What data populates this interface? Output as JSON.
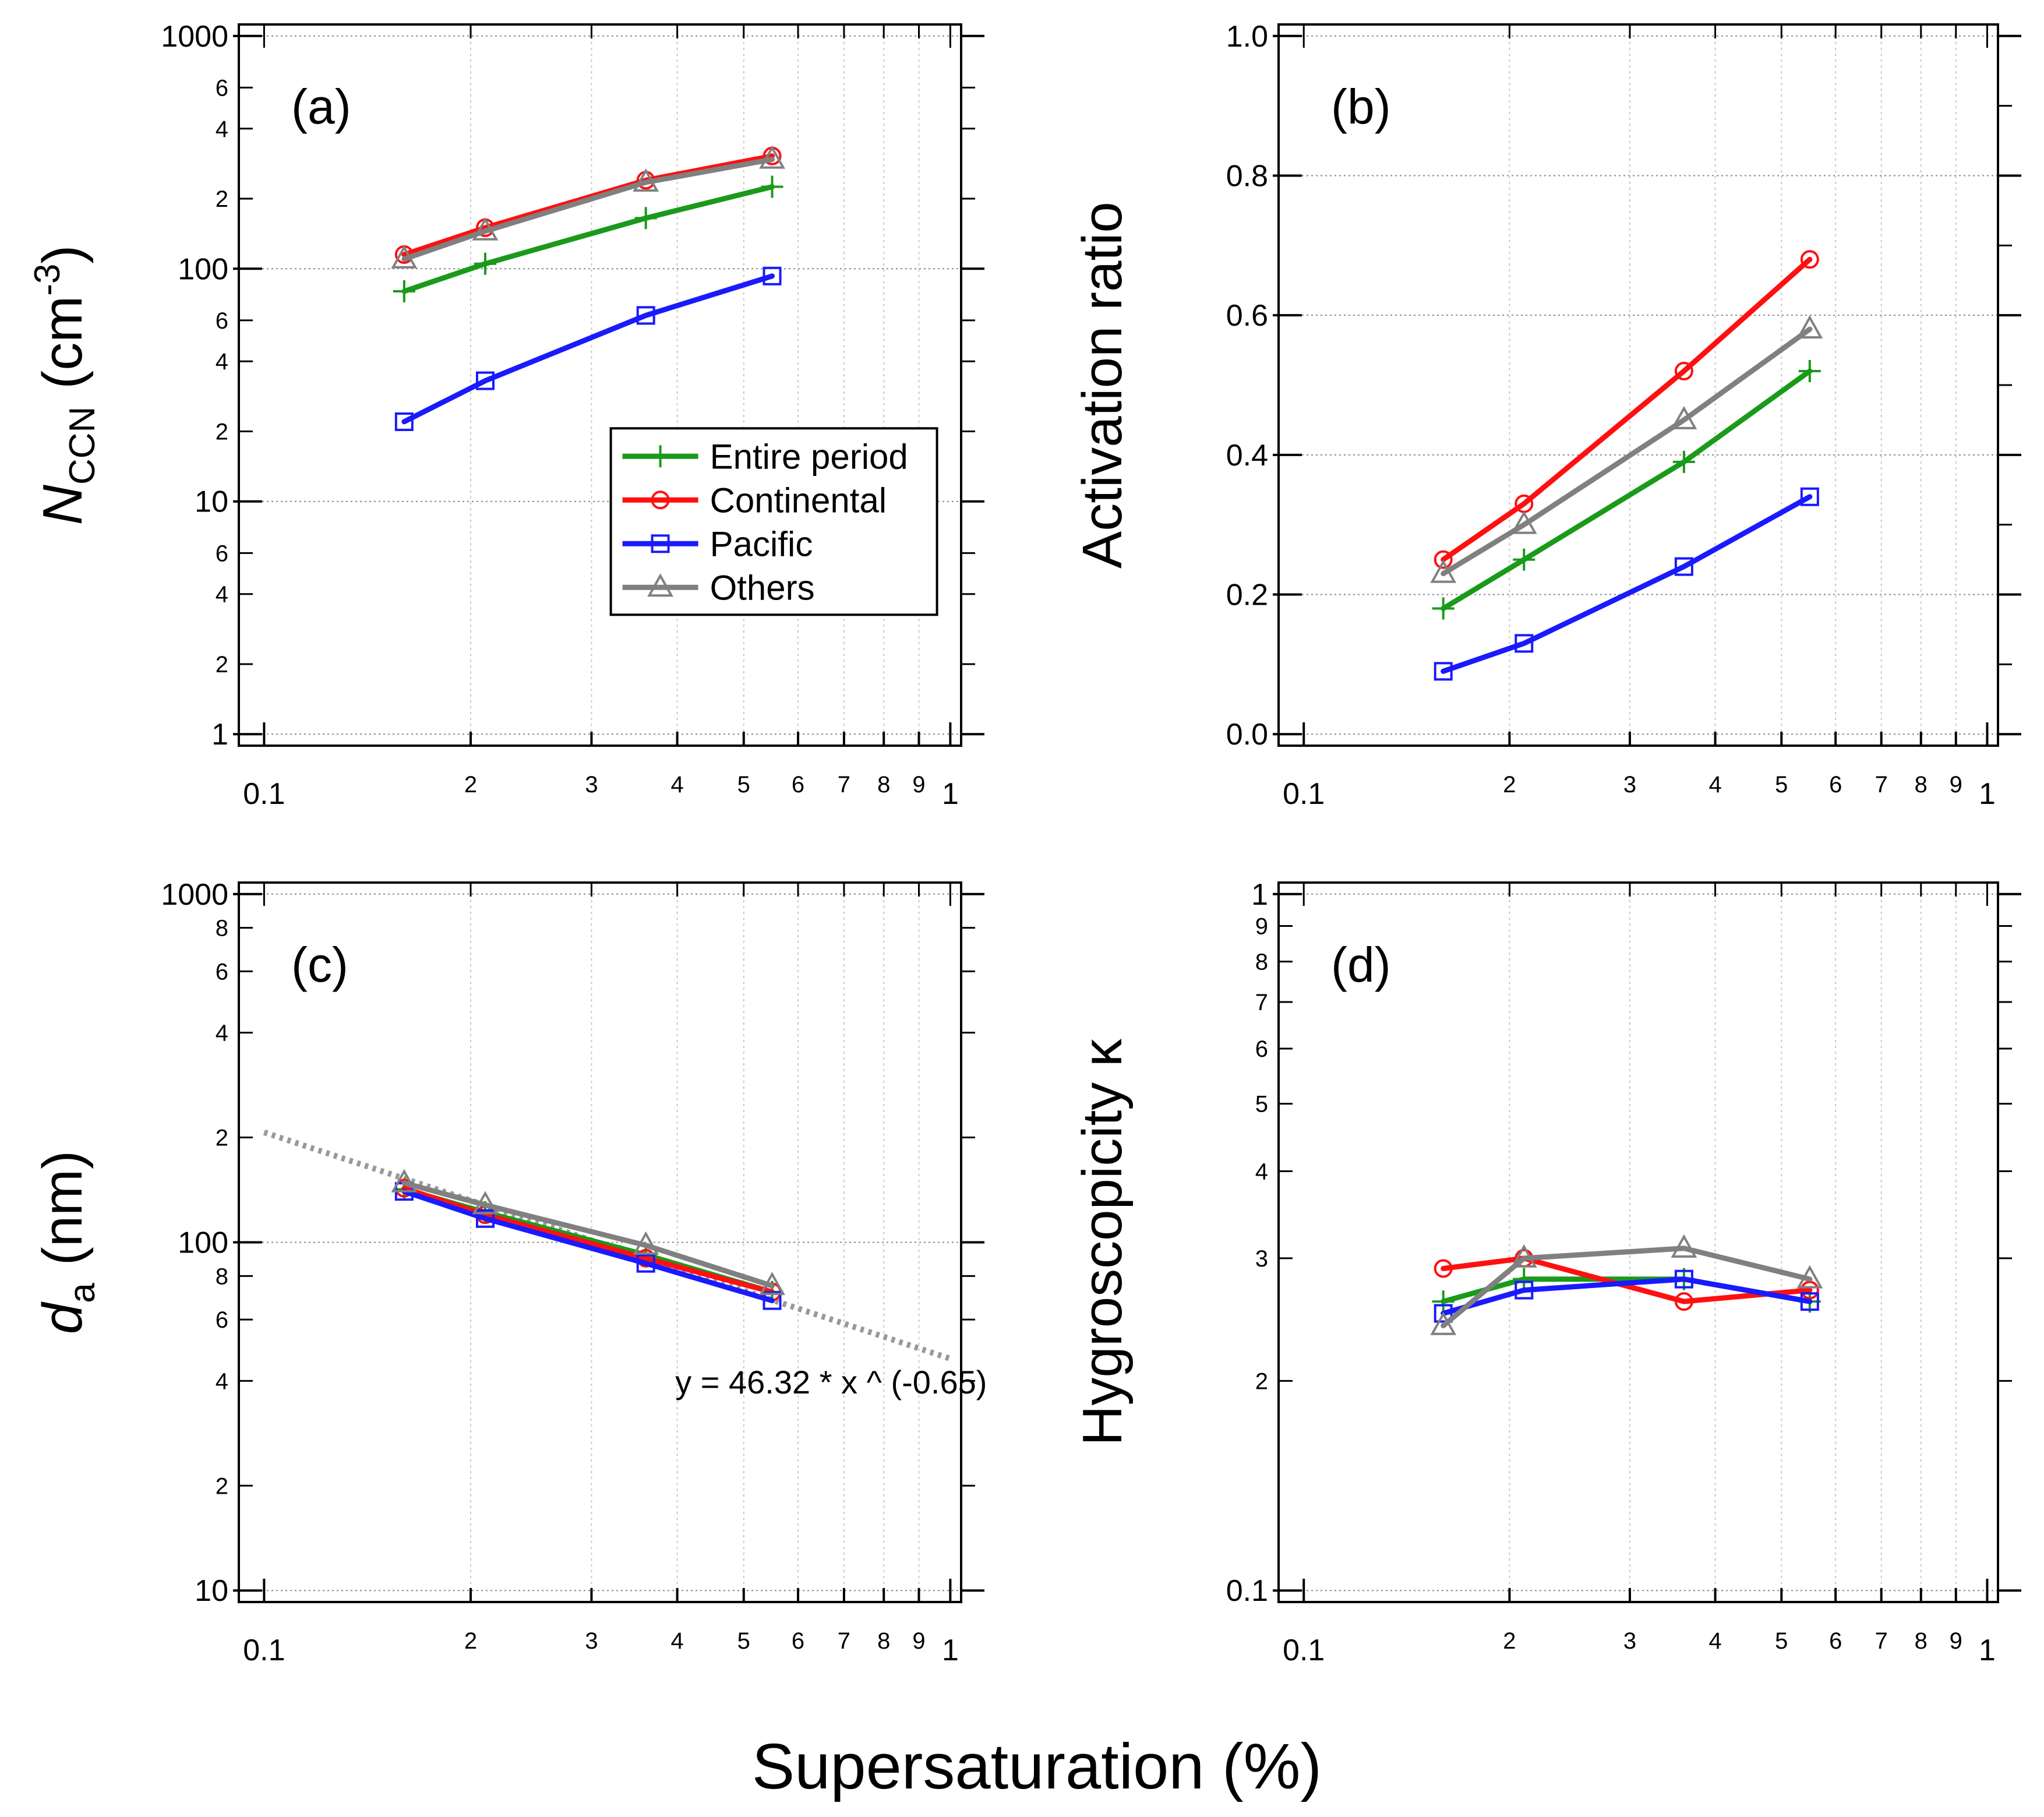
{
  "figure": {
    "xlabel": "Supersaturation (%)"
  },
  "legend": {
    "entries": [
      "Entire period",
      "Continental",
      "Pacific",
      "Others"
    ]
  },
  "colors": {
    "Entire period": "#1a9a1a",
    "Continental": "#ff1010",
    "Pacific": "#1a1aff",
    "Others": "#808080"
  },
  "markers": {
    "Entire period": "plus",
    "Continental": "circle",
    "Pacific": "square",
    "Others": "triangle"
  },
  "x_tick_labels": {
    "major": [
      "0.1",
      "1"
    ],
    "minor": [
      "2",
      "3",
      "4",
      "5",
      "6",
      "7",
      "8",
      "9"
    ]
  },
  "chart_data": [
    {
      "id": "a",
      "type": "line",
      "panel_label": "(a)",
      "ylabel": "N_CCN (cm^-3)",
      "ylabel_parts": {
        "main": "N",
        "sub": "CCN",
        "unit_open": "(cm",
        "unit_sup": "-3",
        "unit_close": ")"
      },
      "xscale": "log",
      "yscale": "log",
      "xlim": [
        0.1,
        1
      ],
      "ylim": [
        1,
        1000
      ],
      "y_major_ticks": [
        1,
        10,
        100,
        1000
      ],
      "y_major_labels": [
        "1",
        "10",
        "100",
        "1000"
      ],
      "y_minor_ticks": [
        2,
        4,
        6,
        20,
        40,
        60,
        200,
        400,
        600
      ],
      "y_minor_labels": [
        "2",
        "4",
        "6",
        "2",
        "4",
        "6",
        "2",
        "4",
        "6"
      ],
      "x": [
        0.16,
        0.21,
        0.36,
        0.55
      ],
      "series": [
        {
          "name": "Entire period",
          "values": [
            80,
            105,
            165,
            225
          ]
        },
        {
          "name": "Continental",
          "values": [
            115,
            150,
            240,
            305
          ]
        },
        {
          "name": "Pacific",
          "values": [
            22,
            33,
            63,
            93
          ]
        },
        {
          "name": "Others",
          "values": [
            110,
            145,
            235,
            295
          ]
        }
      ],
      "legend_position": "lower-right"
    },
    {
      "id": "b",
      "type": "line",
      "panel_label": "(b)",
      "ylabel": "Activation ratio",
      "xscale": "log",
      "yscale": "linear",
      "xlim": [
        0.1,
        1
      ],
      "ylim": [
        0,
        1.0
      ],
      "y_major_ticks": [
        0,
        0.2,
        0.4,
        0.6,
        0.8,
        1.0
      ],
      "y_major_labels": [
        "0.0",
        "0.2",
        "0.4",
        "0.6",
        "0.8",
        "1.0"
      ],
      "x": [
        0.16,
        0.21,
        0.36,
        0.55
      ],
      "series": [
        {
          "name": "Entire period",
          "values": [
            0.18,
            0.25,
            0.39,
            0.52
          ]
        },
        {
          "name": "Continental",
          "values": [
            0.25,
            0.33,
            0.52,
            0.68
          ]
        },
        {
          "name": "Pacific",
          "values": [
            0.09,
            0.13,
            0.24,
            0.34
          ]
        },
        {
          "name": "Others",
          "values": [
            0.23,
            0.3,
            0.45,
            0.58
          ]
        }
      ]
    },
    {
      "id": "c",
      "type": "line",
      "panel_label": "(c)",
      "ylabel": "d_a (nm)",
      "ylabel_parts": {
        "main": "d",
        "sub": "a",
        "unit": "(nm)"
      },
      "xscale": "log",
      "yscale": "log",
      "xlim": [
        0.1,
        1
      ],
      "ylim": [
        10,
        1000
      ],
      "y_major_ticks": [
        10,
        100,
        1000
      ],
      "y_major_labels": [
        "10",
        "100",
        "1000"
      ],
      "y_minor_ticks": [
        20,
        40,
        60,
        80,
        200,
        400,
        600,
        800
      ],
      "y_minor_labels": [
        "2",
        "4",
        "6",
        "8",
        "2",
        "4",
        "6",
        "8"
      ],
      "x": [
        0.16,
        0.21,
        0.36,
        0.55
      ],
      "series": [
        {
          "name": "Entire period",
          "values": [
            142,
            122,
            92,
            72
          ]
        },
        {
          "name": "Continental",
          "values": [
            143,
            120,
            90,
            72
          ]
        },
        {
          "name": "Pacific",
          "values": [
            140,
            117,
            87,
            68
          ]
        },
        {
          "name": "Others",
          "values": [
            148,
            128,
            98,
            75
          ]
        }
      ],
      "fit": {
        "label": "y = 46.32 * x ^ (-0.65)",
        "a": 46.32,
        "b": -0.65,
        "color": "#999999",
        "style": "dotted"
      }
    },
    {
      "id": "d",
      "type": "line",
      "panel_label": "(d)",
      "ylabel": "Hygroscopicity κ",
      "xscale": "log",
      "yscale": "log",
      "xlim": [
        0.1,
        1
      ],
      "ylim": [
        0.1,
        1
      ],
      "y_major_ticks": [
        0.1,
        1
      ],
      "y_major_labels": [
        "0.1",
        "1"
      ],
      "y_minor_ticks": [
        0.2,
        0.3,
        0.4,
        0.5,
        0.6,
        0.7,
        0.8,
        0.9
      ],
      "y_minor_labels": [
        "2",
        "3",
        "4",
        "5",
        "6",
        "7",
        "8",
        "9"
      ],
      "x": [
        0.16,
        0.21,
        0.36,
        0.55
      ],
      "series": [
        {
          "name": "Entire period",
          "values": [
            0.26,
            0.28,
            0.28,
            0.26
          ]
        },
        {
          "name": "Continental",
          "values": [
            0.29,
            0.3,
            0.26,
            0.27
          ]
        },
        {
          "name": "Pacific",
          "values": [
            0.25,
            0.27,
            0.28,
            0.26
          ]
        },
        {
          "name": "Others",
          "values": [
            0.24,
            0.3,
            0.31,
            0.28
          ]
        }
      ]
    }
  ]
}
